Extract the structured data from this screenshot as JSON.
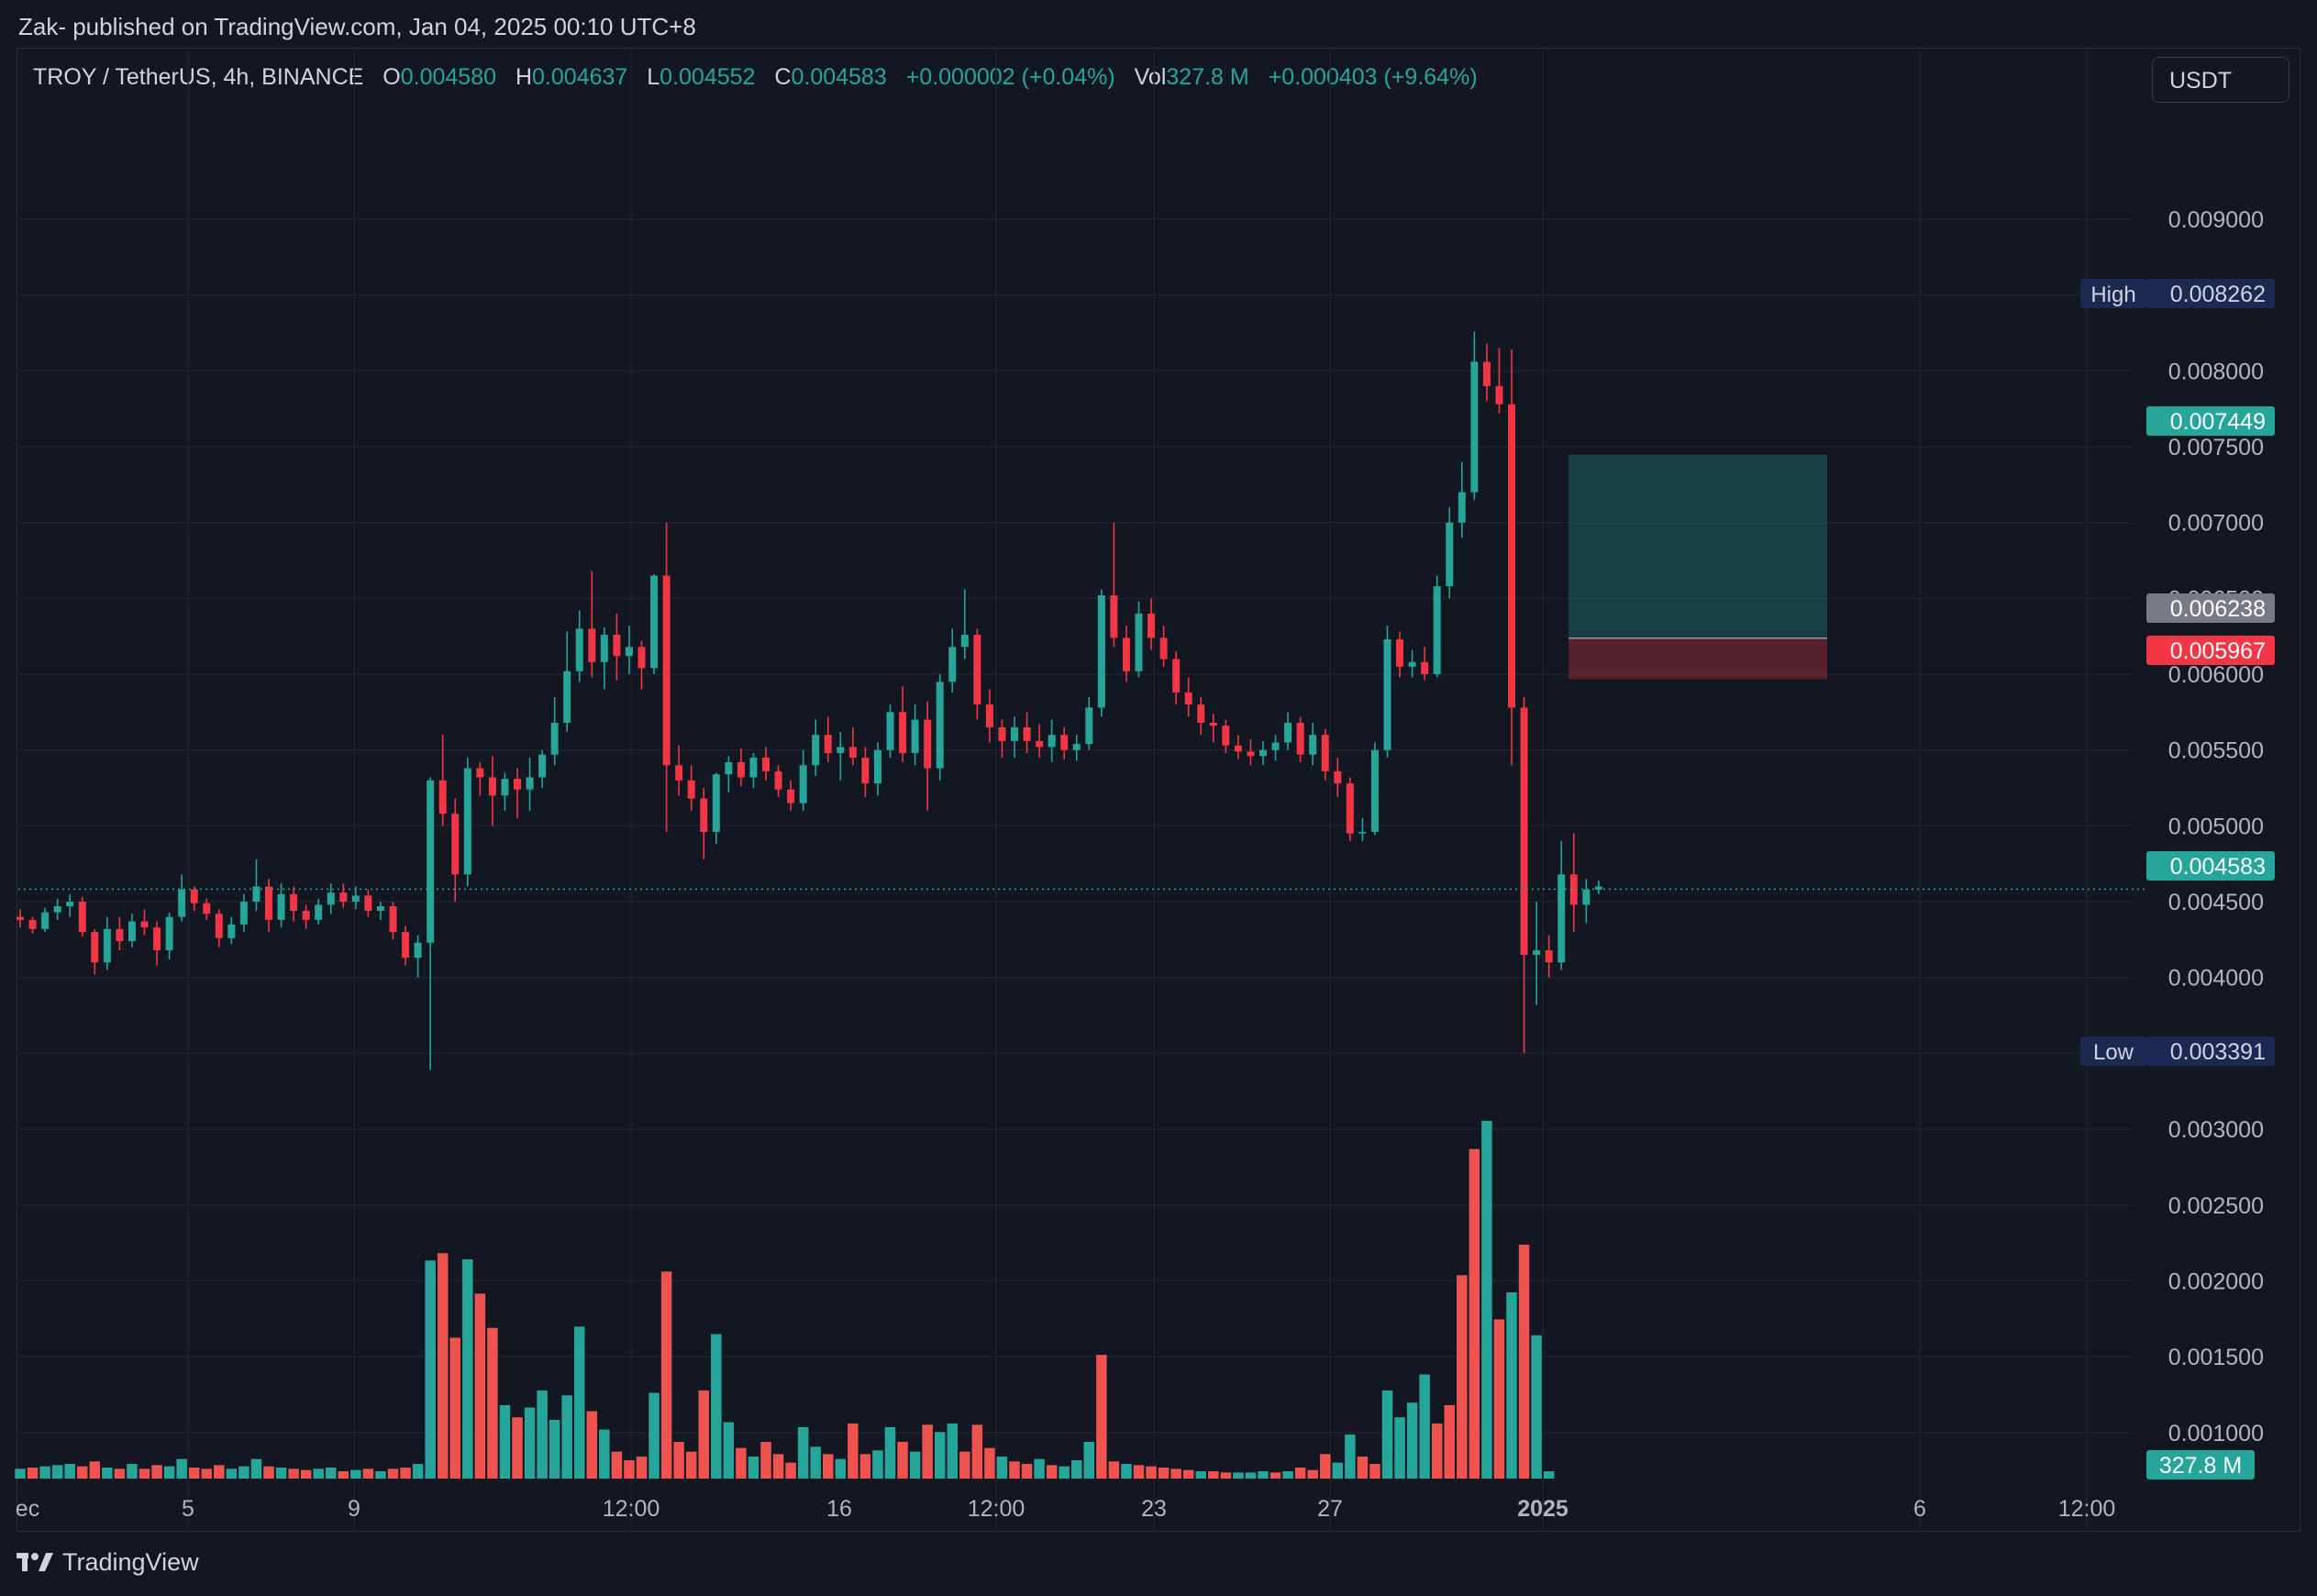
{
  "header": {
    "publisher_line": "Zak- published on TradingView.com, Jan 04, 2025 00:10 UTC+8"
  },
  "legend": {
    "symbol": "TROY / TetherUS, 4h, BINANCE",
    "o_label": "O",
    "o_value": "0.004580",
    "h_label": "H",
    "h_value": "0.004637",
    "l_label": "L",
    "l_value": "0.004552",
    "c_label": "C",
    "c_value": "0.004583",
    "change": "+0.000002 (+0.04%)",
    "vol_label": "Vol",
    "vol_value": "327.8 M",
    "vol_change": "+0.000403 (+9.64%)"
  },
  "currency_button": "USDT",
  "footer": {
    "brand": "TradingView"
  },
  "colors": {
    "background": "#131722",
    "up": "#26a69a",
    "down": "#f23645",
    "volume_up": "#26a69a",
    "volume_down": "#ef5350",
    "grid": "#1e222d",
    "text": "#d1d4dc",
    "high_low_badge": "#1c2a53"
  },
  "chart_data": {
    "type": "candlestick",
    "interval": "4h",
    "exchange": "BINANCE",
    "y_axis": {
      "ticks": [
        "0.009000",
        "0.008500",
        "0.008000",
        "0.007500",
        "0.007000",
        "0.006500",
        "0.006000",
        "0.005500",
        "0.005000",
        "0.004500",
        "0.004000",
        "0.003500",
        "0.003000",
        "0.002500",
        "0.002000",
        "0.001500",
        "0.001000"
      ],
      "range": [
        0.00066,
        0.00975
      ]
    },
    "x_axis": {
      "ticks": [
        "ec",
        "5",
        "9",
        "12:00",
        "16",
        "12:00",
        "23",
        "27",
        "2025",
        "6",
        "12:00"
      ]
    },
    "markers": {
      "high_label": "High",
      "high_value": "0.008262",
      "low_label": "Low",
      "low_value": "0.003391",
      "last_price": "0.004583",
      "volume_label": "327.8 M"
    },
    "position": {
      "entry": "0.006238",
      "stop_loss": "0.005967",
      "target": "0.007449"
    },
    "candles": [
      [
        0.0044,
        0.00445,
        0.00433,
        0.00438
      ],
      [
        0.00438,
        0.0044,
        0.00429,
        0.00432
      ],
      [
        0.00432,
        0.00446,
        0.0043,
        0.00443
      ],
      [
        0.00443,
        0.00452,
        0.00438,
        0.00447
      ],
      [
        0.00447,
        0.00455,
        0.0044,
        0.0045
      ],
      [
        0.0045,
        0.00453,
        0.00427,
        0.0043
      ],
      [
        0.0043,
        0.00432,
        0.00402,
        0.0041
      ],
      [
        0.0041,
        0.0044,
        0.00405,
        0.00432
      ],
      [
        0.00432,
        0.0044,
        0.00418,
        0.00424
      ],
      [
        0.00424,
        0.00442,
        0.0042,
        0.00437
      ],
      [
        0.00437,
        0.00445,
        0.00428,
        0.00433
      ],
      [
        0.00433,
        0.00437,
        0.00408,
        0.00418
      ],
      [
        0.00418,
        0.00443,
        0.00412,
        0.0044
      ],
      [
        0.0044,
        0.00468,
        0.00437,
        0.00458
      ],
      [
        0.00458,
        0.0046,
        0.00444,
        0.00449
      ],
      [
        0.00449,
        0.00452,
        0.00438,
        0.00442
      ],
      [
        0.00442,
        0.00445,
        0.0042,
        0.00426
      ],
      [
        0.00426,
        0.0044,
        0.00422,
        0.00435
      ],
      [
        0.00435,
        0.00455,
        0.0043,
        0.0045
      ],
      [
        0.0045,
        0.00478,
        0.00444,
        0.0046
      ],
      [
        0.0046,
        0.00465,
        0.0043,
        0.00438
      ],
      [
        0.00438,
        0.00462,
        0.00433,
        0.00455
      ],
      [
        0.00455,
        0.0046,
        0.00437,
        0.00444
      ],
      [
        0.00444,
        0.00448,
        0.00432,
        0.00438
      ],
      [
        0.00438,
        0.00452,
        0.00435,
        0.00448
      ],
      [
        0.00448,
        0.00462,
        0.00442,
        0.00456
      ],
      [
        0.00456,
        0.00462,
        0.00446,
        0.0045
      ],
      [
        0.0045,
        0.0046,
        0.00445,
        0.00454
      ],
      [
        0.00454,
        0.00458,
        0.0044,
        0.00444
      ],
      [
        0.00444,
        0.0045,
        0.00438,
        0.00447
      ],
      [
        0.00447,
        0.0045,
        0.00425,
        0.0043
      ],
      [
        0.0043,
        0.00434,
        0.00408,
        0.00413
      ],
      [
        0.00413,
        0.00428,
        0.004,
        0.00423
      ],
      [
        0.00423,
        0.00532,
        0.00339,
        0.0053
      ],
      [
        0.0053,
        0.0056,
        0.005,
        0.00508
      ],
      [
        0.00508,
        0.00518,
        0.0045,
        0.00468
      ],
      [
        0.00468,
        0.00545,
        0.0046,
        0.00538
      ],
      [
        0.00538,
        0.00542,
        0.0052,
        0.00532
      ],
      [
        0.00532,
        0.00546,
        0.005,
        0.0052
      ],
      [
        0.0052,
        0.00535,
        0.0051,
        0.00531
      ],
      [
        0.00531,
        0.00538,
        0.00505,
        0.00524
      ],
      [
        0.00524,
        0.00545,
        0.0051,
        0.00532
      ],
      [
        0.00532,
        0.0055,
        0.00525,
        0.00547
      ],
      [
        0.00547,
        0.00585,
        0.0054,
        0.00568
      ],
      [
        0.00568,
        0.00628,
        0.00562,
        0.00602
      ],
      [
        0.00602,
        0.00642,
        0.00595,
        0.0063
      ],
      [
        0.0063,
        0.00668,
        0.00598,
        0.00608
      ],
      [
        0.00608,
        0.00631,
        0.0059,
        0.00626
      ],
      [
        0.00626,
        0.0064,
        0.00596,
        0.00612
      ],
      [
        0.00612,
        0.00632,
        0.006,
        0.00618
      ],
      [
        0.00618,
        0.00622,
        0.0059,
        0.00604
      ],
      [
        0.00604,
        0.00666,
        0.006,
        0.00665
      ],
      [
        0.00665,
        0.007,
        0.00496,
        0.0054
      ],
      [
        0.0054,
        0.00553,
        0.0052,
        0.0053
      ],
      [
        0.0053,
        0.0054,
        0.0051,
        0.00518
      ],
      [
        0.00518,
        0.00525,
        0.00478,
        0.00496
      ],
      [
        0.00496,
        0.00535,
        0.00488,
        0.00534
      ],
      [
        0.00534,
        0.00546,
        0.00522,
        0.00542
      ],
      [
        0.00542,
        0.00551,
        0.00526,
        0.00532
      ],
      [
        0.00532,
        0.00548,
        0.00525,
        0.00545
      ],
      [
        0.00545,
        0.00552,
        0.0053,
        0.00536
      ],
      [
        0.00536,
        0.0054,
        0.00519,
        0.00524
      ],
      [
        0.00524,
        0.0053,
        0.0051,
        0.00515
      ],
      [
        0.00515,
        0.0055,
        0.0051,
        0.0054
      ],
      [
        0.0054,
        0.0057,
        0.00533,
        0.0056
      ],
      [
        0.0056,
        0.00572,
        0.00542,
        0.00548
      ],
      [
        0.00548,
        0.00562,
        0.0053,
        0.00552
      ],
      [
        0.00552,
        0.00565,
        0.0054,
        0.00545
      ],
      [
        0.00545,
        0.00552,
        0.00519,
        0.00528
      ],
      [
        0.00528,
        0.00555,
        0.0052,
        0.0055
      ],
      [
        0.0055,
        0.0058,
        0.00545,
        0.00575
      ],
      [
        0.00575,
        0.00592,
        0.00542,
        0.00548
      ],
      [
        0.00548,
        0.0058,
        0.0054,
        0.0057
      ],
      [
        0.0057,
        0.00582,
        0.0051,
        0.00538
      ],
      [
        0.00538,
        0.006,
        0.0053,
        0.00595
      ],
      [
        0.00595,
        0.0063,
        0.00588,
        0.00618
      ],
      [
        0.00618,
        0.00656,
        0.0061,
        0.00626
      ],
      [
        0.00626,
        0.0063,
        0.0057,
        0.0058
      ],
      [
        0.0058,
        0.0059,
        0.00555,
        0.00565
      ],
      [
        0.00565,
        0.0057,
        0.00545,
        0.00556
      ],
      [
        0.00556,
        0.00572,
        0.00545,
        0.00565
      ],
      [
        0.00565,
        0.00575,
        0.00548,
        0.00556
      ],
      [
        0.00556,
        0.00567,
        0.00545,
        0.00552
      ],
      [
        0.00552,
        0.0057,
        0.00542,
        0.0056
      ],
      [
        0.0056,
        0.00565,
        0.00544,
        0.0055
      ],
      [
        0.0055,
        0.0056,
        0.00543,
        0.00554
      ],
      [
        0.00554,
        0.00585,
        0.0055,
        0.00578
      ],
      [
        0.00578,
        0.00656,
        0.00572,
        0.00652
      ],
      [
        0.00652,
        0.007,
        0.00618,
        0.00624
      ],
      [
        0.00624,
        0.00632,
        0.00595,
        0.00602
      ],
      [
        0.00602,
        0.00648,
        0.00598,
        0.0064
      ],
      [
        0.0064,
        0.0065,
        0.00616,
        0.00624
      ],
      [
        0.00624,
        0.00632,
        0.00605,
        0.0061
      ],
      [
        0.0061,
        0.00615,
        0.0058,
        0.00588
      ],
      [
        0.00588,
        0.00598,
        0.00572,
        0.0058
      ],
      [
        0.0058,
        0.00585,
        0.0056,
        0.00568
      ],
      [
        0.00568,
        0.00574,
        0.00555,
        0.00566
      ],
      [
        0.00566,
        0.0057,
        0.00548,
        0.00553
      ],
      [
        0.00553,
        0.0056,
        0.00544,
        0.00549
      ],
      [
        0.00549,
        0.00557,
        0.0054,
        0.00546
      ],
      [
        0.00546,
        0.00556,
        0.0054,
        0.0055
      ],
      [
        0.0055,
        0.0056,
        0.00543,
        0.00555
      ],
      [
        0.00555,
        0.00575,
        0.0055,
        0.00568
      ],
      [
        0.00568,
        0.00572,
        0.00542,
        0.00547
      ],
      [
        0.00547,
        0.00568,
        0.0054,
        0.0056
      ],
      [
        0.0056,
        0.00564,
        0.0053,
        0.00536
      ],
      [
        0.00536,
        0.00545,
        0.00519,
        0.00528
      ],
      [
        0.00528,
        0.00532,
        0.0049,
        0.00495
      ],
      [
        0.00495,
        0.00505,
        0.0049,
        0.00496
      ],
      [
        0.00496,
        0.00555,
        0.00494,
        0.0055
      ],
      [
        0.0055,
        0.00632,
        0.00545,
        0.00623
      ],
      [
        0.00623,
        0.00628,
        0.00598,
        0.00605
      ],
      [
        0.00605,
        0.00616,
        0.00598,
        0.00608
      ],
      [
        0.00608,
        0.00618,
        0.00596,
        0.006
      ],
      [
        0.006,
        0.00665,
        0.00598,
        0.00658
      ],
      [
        0.00658,
        0.0071,
        0.0065,
        0.007
      ],
      [
        0.007,
        0.0074,
        0.0069,
        0.0072
      ],
      [
        0.0072,
        0.00826,
        0.00715,
        0.00806
      ],
      [
        0.00806,
        0.00818,
        0.0078,
        0.0079
      ],
      [
        0.0079,
        0.00815,
        0.00772,
        0.00778
      ],
      [
        0.00778,
        0.00814,
        0.0054,
        0.00578
      ],
      [
        0.00578,
        0.00585,
        0.0035,
        0.00415
      ],
      [
        0.00415,
        0.0045,
        0.00382,
        0.00418
      ],
      [
        0.00418,
        0.00428,
        0.004,
        0.0041
      ],
      [
        0.0041,
        0.0049,
        0.00405,
        0.00468
      ],
      [
        0.00468,
        0.00495,
        0.0043,
        0.00448
      ],
      [
        0.00448,
        0.00465,
        0.00436,
        0.00458
      ],
      [
        0.00458,
        0.00464,
        0.00455,
        0.0046
      ]
    ],
    "volume_bars": [
      {
        "v": 0.08,
        "up": true
      },
      {
        "v": 0.09,
        "up": false
      },
      {
        "v": 0.1,
        "up": true
      },
      {
        "v": 0.11,
        "up": true
      },
      {
        "v": 0.12,
        "up": true
      },
      {
        "v": 0.1,
        "up": false
      },
      {
        "v": 0.14,
        "up": false
      },
      {
        "v": 0.09,
        "up": true
      },
      {
        "v": 0.08,
        "up": false
      },
      {
        "v": 0.12,
        "up": true
      },
      {
        "v": 0.08,
        "up": false
      },
      {
        "v": 0.11,
        "up": false
      },
      {
        "v": 0.1,
        "up": true
      },
      {
        "v": 0.16,
        "up": true
      },
      {
        "v": 0.09,
        "up": false
      },
      {
        "v": 0.08,
        "up": false
      },
      {
        "v": 0.11,
        "up": false
      },
      {
        "v": 0.08,
        "up": true
      },
      {
        "v": 0.1,
        "up": true
      },
      {
        "v": 0.16,
        "up": true
      },
      {
        "v": 0.1,
        "up": false
      },
      {
        "v": 0.09,
        "up": true
      },
      {
        "v": 0.08,
        "up": false
      },
      {
        "v": 0.07,
        "up": false
      },
      {
        "v": 0.08,
        "up": true
      },
      {
        "v": 0.09,
        "up": true
      },
      {
        "v": 0.06,
        "up": false
      },
      {
        "v": 0.07,
        "up": true
      },
      {
        "v": 0.08,
        "up": false
      },
      {
        "v": 0.06,
        "up": true
      },
      {
        "v": 0.08,
        "up": false
      },
      {
        "v": 0.09,
        "up": false
      },
      {
        "v": 0.12,
        "up": true
      },
      {
        "v": 1.78,
        "up": true
      },
      {
        "v": 1.84,
        "up": false
      },
      {
        "v": 1.15,
        "up": false
      },
      {
        "v": 1.79,
        "up": true
      },
      {
        "v": 1.51,
        "up": false
      },
      {
        "v": 1.23,
        "up": false
      },
      {
        "v": 0.6,
        "up": true
      },
      {
        "v": 0.5,
        "up": false
      },
      {
        "v": 0.58,
        "up": true
      },
      {
        "v": 0.72,
        "up": true
      },
      {
        "v": 0.48,
        "up": true
      },
      {
        "v": 0.68,
        "up": true
      },
      {
        "v": 1.24,
        "up": true
      },
      {
        "v": 0.55,
        "up": false
      },
      {
        "v": 0.4,
        "up": true
      },
      {
        "v": 0.22,
        "up": false
      },
      {
        "v": 0.15,
        "up": false
      },
      {
        "v": 0.18,
        "up": false
      },
      {
        "v": 0.7,
        "up": true
      },
      {
        "v": 1.69,
        "up": false
      },
      {
        "v": 0.3,
        "up": false
      },
      {
        "v": 0.22,
        "up": false
      },
      {
        "v": 0.72,
        "up": false
      },
      {
        "v": 1.18,
        "up": true
      },
      {
        "v": 0.46,
        "up": true
      },
      {
        "v": 0.25,
        "up": false
      },
      {
        "v": 0.18,
        "up": true
      },
      {
        "v": 0.3,
        "up": false
      },
      {
        "v": 0.2,
        "up": false
      },
      {
        "v": 0.13,
        "up": false
      },
      {
        "v": 0.42,
        "up": true
      },
      {
        "v": 0.26,
        "up": true
      },
      {
        "v": 0.2,
        "up": false
      },
      {
        "v": 0.16,
        "up": true
      },
      {
        "v": 0.45,
        "up": false
      },
      {
        "v": 0.2,
        "up": false
      },
      {
        "v": 0.23,
        "up": true
      },
      {
        "v": 0.42,
        "up": true
      },
      {
        "v": 0.3,
        "up": false
      },
      {
        "v": 0.22,
        "up": true
      },
      {
        "v": 0.44,
        "up": false
      },
      {
        "v": 0.38,
        "up": true
      },
      {
        "v": 0.45,
        "up": true
      },
      {
        "v": 0.22,
        "up": false
      },
      {
        "v": 0.44,
        "up": false
      },
      {
        "v": 0.25,
        "up": false
      },
      {
        "v": 0.18,
        "up": true
      },
      {
        "v": 0.14,
        "up": false
      },
      {
        "v": 0.12,
        "up": false
      },
      {
        "v": 0.16,
        "up": true
      },
      {
        "v": 0.11,
        "up": false
      },
      {
        "v": 0.1,
        "up": true
      },
      {
        "v": 0.15,
        "up": true
      },
      {
        "v": 0.3,
        "up": true
      },
      {
        "v": 1.01,
        "up": false
      },
      {
        "v": 0.14,
        "up": false
      },
      {
        "v": 0.12,
        "up": true
      },
      {
        "v": 0.11,
        "up": false
      },
      {
        "v": 0.1,
        "up": false
      },
      {
        "v": 0.09,
        "up": false
      },
      {
        "v": 0.08,
        "up": false
      },
      {
        "v": 0.07,
        "up": false
      },
      {
        "v": 0.06,
        "up": true
      },
      {
        "v": 0.06,
        "up": false
      },
      {
        "v": 0.05,
        "up": false
      },
      {
        "v": 0.05,
        "up": true
      },
      {
        "v": 0.05,
        "up": true
      },
      {
        "v": 0.06,
        "up": true
      },
      {
        "v": 0.05,
        "up": false
      },
      {
        "v": 0.06,
        "up": true
      },
      {
        "v": 0.09,
        "up": false
      },
      {
        "v": 0.07,
        "up": false
      },
      {
        "v": 0.2,
        "up": false
      },
      {
        "v": 0.13,
        "up": true
      },
      {
        "v": 0.36,
        "up": true
      },
      {
        "v": 0.18,
        "up": false
      },
      {
        "v": 0.12,
        "up": false
      },
      {
        "v": 0.72,
        "up": true
      },
      {
        "v": 0.5,
        "up": true
      },
      {
        "v": 0.62,
        "up": true
      },
      {
        "v": 0.85,
        "up": true
      },
      {
        "v": 0.45,
        "up": false
      },
      {
        "v": 0.6,
        "up": false
      },
      {
        "v": 1.66,
        "up": false
      },
      {
        "v": 2.69,
        "up": false
      },
      {
        "v": 2.92,
        "up": true
      },
      {
        "v": 1.3,
        "up": false
      },
      {
        "v": 1.52,
        "up": true
      },
      {
        "v": 1.91,
        "up": false
      },
      {
        "v": 1.17,
        "up": true
      },
      {
        "v": 0.06,
        "up": true
      }
    ],
    "grid": true
  }
}
